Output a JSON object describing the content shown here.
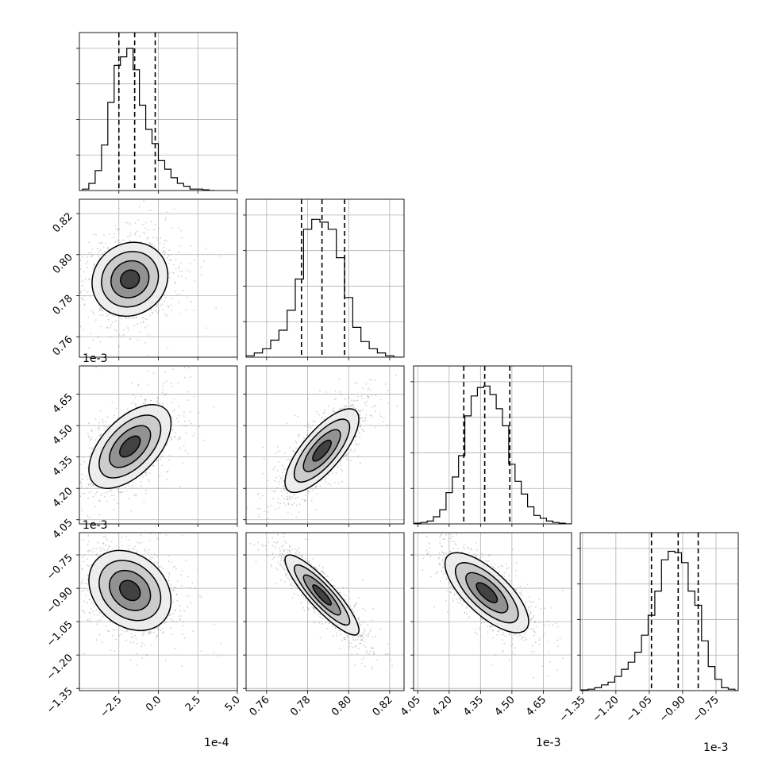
{
  "chart_data": {
    "type": "corner",
    "parameters": [
      {
        "name": "p0",
        "axis_label": "",
        "scale_label": "1e-4",
        "range": [
          -5.0,
          5.0
        ],
        "ticks": [
          -2.5,
          0.0,
          2.5,
          5.0
        ],
        "tick_labels": [
          "−2.5",
          "0.0",
          "2.5",
          "5.0"
        ],
        "quantiles": [
          -2.5,
          -1.5,
          -0.2
        ],
        "hist_x": [
          -4.6,
          -4.2,
          -3.8,
          -3.4,
          -3.0,
          -2.6,
          -2.2,
          -1.8,
          -1.4,
          -1.0,
          -0.6,
          -0.2,
          0.2,
          0.6,
          1.0,
          1.4,
          1.8,
          2.2,
          2.6,
          3.0,
          3.4
        ],
        "hist_y": [
          0.01,
          0.05,
          0.14,
          0.32,
          0.62,
          0.88,
          0.94,
          1.0,
          0.85,
          0.6,
          0.43,
          0.33,
          0.21,
          0.15,
          0.09,
          0.05,
          0.03,
          0.01,
          0.01,
          0.005,
          0.0
        ]
      },
      {
        "name": "p1",
        "axis_label": "",
        "scale_label": "",
        "range": [
          0.75,
          0.827
        ],
        "ticks": [
          0.76,
          0.78,
          0.8,
          0.82
        ],
        "tick_labels": [
          "0.76",
          "0.78",
          "0.80",
          "0.82"
        ],
        "quantiles": [
          0.777,
          0.787,
          0.798
        ],
        "hist_x": [
          0.752,
          0.756,
          0.76,
          0.764,
          0.768,
          0.772,
          0.776,
          0.78,
          0.784,
          0.788,
          0.792,
          0.796,
          0.8,
          0.804,
          0.808,
          0.812,
          0.816,
          0.82,
          0.824
        ],
        "hist_y": [
          0.01,
          0.03,
          0.06,
          0.12,
          0.19,
          0.33,
          0.55,
          0.9,
          0.97,
          0.95,
          0.9,
          0.7,
          0.42,
          0.21,
          0.11,
          0.06,
          0.03,
          0.01,
          0.0
        ]
      },
      {
        "name": "p2",
        "axis_label": "",
        "scale_label": "1e-3",
        "range": [
          4.03,
          4.785
        ],
        "ticks": [
          4.05,
          4.2,
          4.35,
          4.5,
          4.65
        ],
        "tick_labels": [
          "4.05",
          "4.20",
          "4.35",
          "4.50",
          "4.65"
        ],
        "quantiles": [
          4.27,
          4.37,
          4.49
        ],
        "hist_x": [
          4.05,
          4.08,
          4.11,
          4.14,
          4.17,
          4.2,
          4.23,
          4.26,
          4.29,
          4.32,
          4.35,
          4.38,
          4.41,
          4.44,
          4.47,
          4.5,
          4.53,
          4.56,
          4.59,
          4.62,
          4.65,
          4.68,
          4.71,
          4.74,
          4.77
        ],
        "hist_y": [
          0.005,
          0.01,
          0.02,
          0.05,
          0.1,
          0.22,
          0.33,
          0.48,
          0.76,
          0.9,
          0.96,
          0.97,
          0.91,
          0.81,
          0.69,
          0.42,
          0.3,
          0.21,
          0.12,
          0.06,
          0.04,
          0.02,
          0.01,
          0.005,
          0.0
        ]
      },
      {
        "name": "p3",
        "axis_label": "",
        "scale_label": "1e-3",
        "range": [
          -1.36,
          -0.65
        ],
        "ticks": [
          -1.35,
          -1.2,
          -1.05,
          -0.9,
          -0.75
        ],
        "tick_labels": [
          "−1.35",
          "−1.20",
          "−1.05",
          "−0.90",
          "−0.75"
        ],
        "quantiles": [
          -1.04,
          -0.92,
          -0.83
        ],
        "hist_x": [
          -1.34,
          -1.31,
          -1.28,
          -1.25,
          -1.22,
          -1.19,
          -1.16,
          -1.13,
          -1.1,
          -1.07,
          -1.04,
          -1.01,
          -0.98,
          -0.95,
          -0.92,
          -0.89,
          -0.86,
          -0.83,
          -0.8,
          -0.77,
          -0.74,
          -0.71,
          -0.68,
          -0.65
        ],
        "hist_y": [
          0.005,
          0.01,
          0.02,
          0.04,
          0.06,
          0.1,
          0.15,
          0.2,
          0.27,
          0.39,
          0.53,
          0.7,
          0.92,
          0.98,
          0.97,
          0.9,
          0.7,
          0.6,
          0.35,
          0.17,
          0.08,
          0.02,
          0.01,
          0.0
        ]
      }
    ],
    "pairs": [
      {
        "x": 0,
        "y": 1,
        "center": [
          -1.8,
          0.788
        ],
        "sx": 1.2,
        "sy": 0.009,
        "rho": 0.1
      },
      {
        "x": 0,
        "y": 2,
        "center": [
          -1.8,
          4.4
        ],
        "sx": 1.3,
        "sy": 0.1,
        "rho": 0.55
      },
      {
        "x": 0,
        "y": 3,
        "center": [
          -1.8,
          -0.91
        ],
        "sx": 1.3,
        "sy": 0.09,
        "rho": -0.25
      },
      {
        "x": 1,
        "y": 2,
        "center": [
          0.787,
          4.38
        ],
        "sx": 0.009,
        "sy": 0.1,
        "rho": 0.75
      },
      {
        "x": 1,
        "y": 3,
        "center": [
          0.787,
          -0.93
        ],
        "sx": 0.009,
        "sy": 0.09,
        "rho": -0.88
      },
      {
        "x": 2,
        "y": 3,
        "center": [
          4.38,
          -0.92
        ],
        "sx": 0.1,
        "sy": 0.09,
        "rho": -0.72
      }
    ],
    "contour_levels": [
      0.5,
      1.0,
      1.5,
      2.0
    ],
    "colors": {
      "line": "#000000",
      "grid": "#b0b0b0",
      "points": "#9a9a9a"
    },
    "grid": true
  }
}
